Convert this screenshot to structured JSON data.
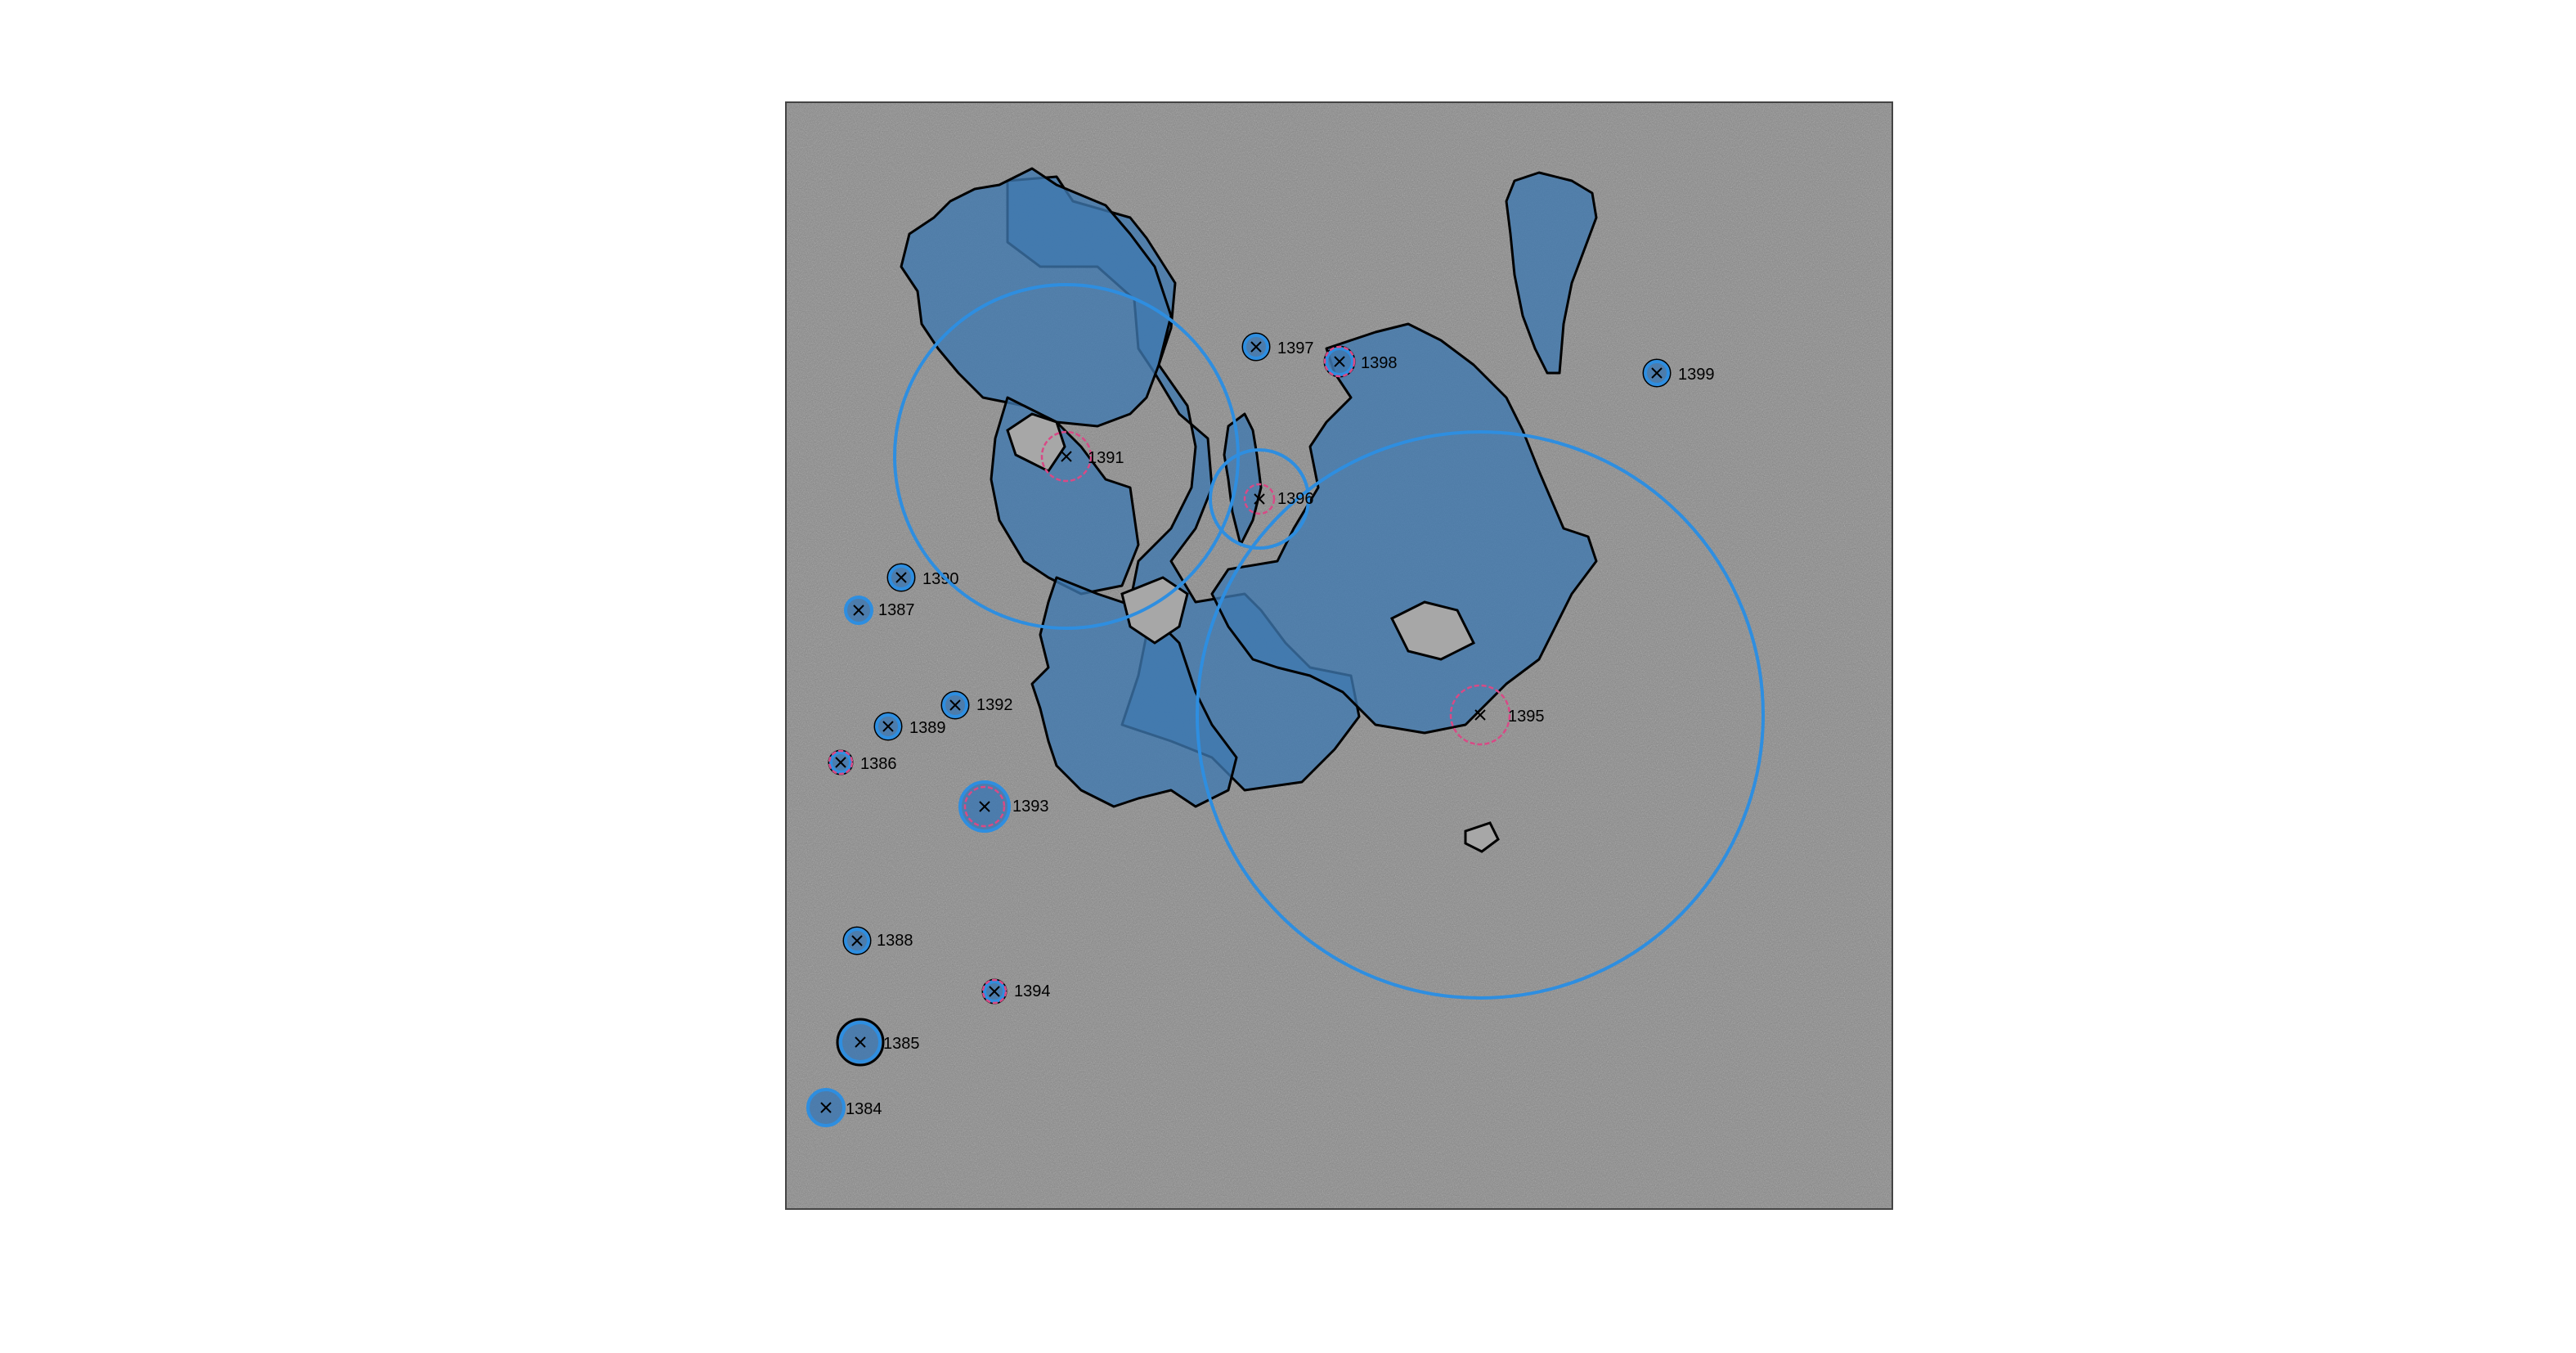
{
  "colors": {
    "page_background": "#ffffff",
    "micrograph_background": "#8a8a8a",
    "region_fill": "#3f78b0",
    "region_outline": "#000000",
    "circle_outer": "#2e8ee0",
    "circle_inner": "#d84a86",
    "marker": "#000000"
  },
  "icons": {
    "centroid_marker": "x-mark-icon"
  },
  "annotations": [
    {
      "id": "1384",
      "label": "1384",
      "inner_circle": false
    },
    {
      "id": "1385",
      "label": "1385",
      "inner_circle": false
    },
    {
      "id": "1386",
      "label": "1386",
      "inner_circle": true
    },
    {
      "id": "1387",
      "label": "1387",
      "inner_circle": false
    },
    {
      "id": "1388",
      "label": "1388",
      "inner_circle": false
    },
    {
      "id": "1389",
      "label": "1389",
      "inner_circle": false
    },
    {
      "id": "1390",
      "label": "1390",
      "inner_circle": false
    },
    {
      "id": "1391",
      "label": "1391",
      "inner_circle": true
    },
    {
      "id": "1392",
      "label": "1392",
      "inner_circle": false
    },
    {
      "id": "1393",
      "label": "1393",
      "inner_circle": true
    },
    {
      "id": "1394",
      "label": "1394",
      "inner_circle": true
    },
    {
      "id": "1395",
      "label": "1395",
      "inner_circle": true
    },
    {
      "id": "1396",
      "label": "1396",
      "inner_circle": true
    },
    {
      "id": "1397",
      "label": "1397",
      "inner_circle": false
    },
    {
      "id": "1398",
      "label": "1398",
      "inner_circle": true
    },
    {
      "id": "1399",
      "label": "1399",
      "inner_circle": false
    }
  ]
}
